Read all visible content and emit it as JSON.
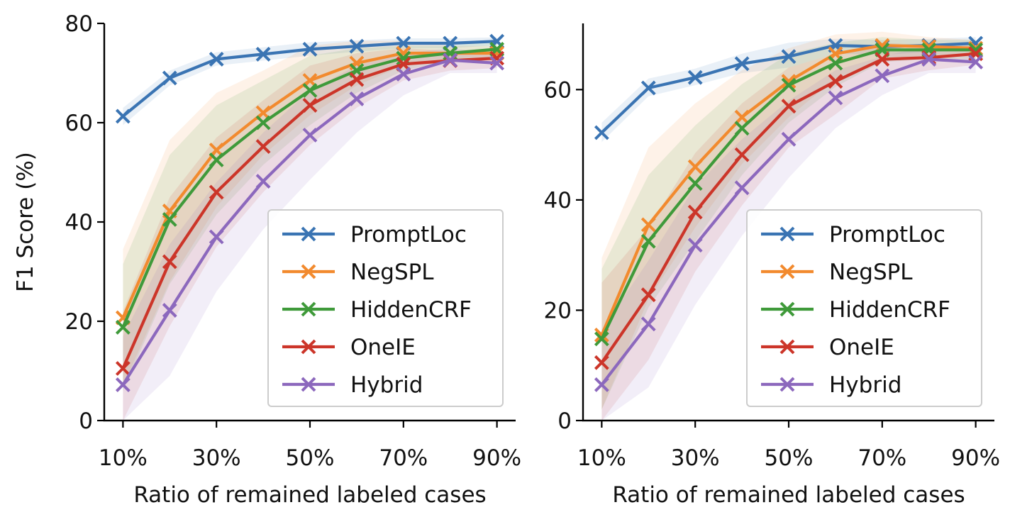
{
  "colors": {
    "PromptLoc": "#3a74b3",
    "NegSPL": "#f28a2e",
    "HiddenCRF": "#3f9a3a",
    "OneIE": "#cc3529",
    "Hybrid": "#8c68bd"
  },
  "chart_data": [
    {
      "type": "line",
      "marker": "x",
      "x": [
        10,
        20,
        30,
        40,
        50,
        60,
        70,
        80,
        90
      ],
      "xticks": [
        10,
        30,
        50,
        70,
        90
      ],
      "xtick_labels": [
        "10%",
        "30%",
        "50%",
        "70%",
        "90%"
      ],
      "xlim": [
        6,
        94
      ],
      "ylim": [
        0,
        80
      ],
      "yticks": [
        0,
        20,
        40,
        60,
        80
      ],
      "ytick_labels": [
        "0",
        "20",
        "40",
        "60",
        "80"
      ],
      "xlabel": "Ratio of remained labeled cases",
      "ylabel": "F1 Score (%)",
      "grid": false,
      "legend": "lower-right",
      "series": [
        {
          "name": "PromptLoc",
          "values": [
            61.3,
            69.0,
            72.8,
            73.8,
            74.8,
            75.4,
            76.0,
            76.0,
            76.4
          ],
          "lower": [
            59.5,
            67.5,
            71.5,
            72.5,
            73.5,
            74.3,
            75.0,
            75.0,
            75.6
          ],
          "upper": [
            63.0,
            70.5,
            74.2,
            75.2,
            76.2,
            76.6,
            77.0,
            77.0,
            77.2
          ]
        },
        {
          "name": "NegSPL",
          "values": [
            20.7,
            42.2,
            54.5,
            62.0,
            68.5,
            72.0,
            74.0,
            74.0,
            74.0
          ],
          "lower": [
            7.0,
            28.0,
            43.0,
            53.5,
            61.5,
            67.5,
            71.5,
            72.5,
            72.5
          ],
          "upper": [
            34.5,
            56.5,
            66.0,
            70.5,
            75.5,
            76.5,
            76.5,
            75.5,
            75.5
          ]
        },
        {
          "name": "HiddenCRF",
          "values": [
            18.8,
            40.5,
            52.5,
            60.0,
            66.5,
            70.5,
            73.0,
            74.0,
            74.8
          ],
          "lower": [
            6.0,
            27.5,
            41.5,
            51.5,
            59.5,
            66.0,
            70.5,
            72.5,
            73.0
          ],
          "upper": [
            31.5,
            53.5,
            63.5,
            68.5,
            73.5,
            75.0,
            75.5,
            75.5,
            76.5
          ]
        },
        {
          "name": "OneIE",
          "values": [
            10.5,
            32.0,
            46.0,
            55.2,
            63.5,
            68.7,
            71.8,
            72.5,
            73.0
          ],
          "lower": [
            0.0,
            19.0,
            35.0,
            46.0,
            55.5,
            63.0,
            68.5,
            70.5,
            71.0
          ],
          "upper": [
            22.0,
            45.0,
            57.0,
            64.5,
            71.5,
            74.0,
            75.0,
            74.5,
            75.0
          ]
        },
        {
          "name": "Hybrid",
          "values": [
            7.2,
            22.2,
            37.0,
            48.2,
            57.5,
            64.8,
            69.8,
            72.6,
            72.0
          ],
          "lower": [
            0.0,
            9.0,
            26.0,
            38.5,
            48.5,
            58.0,
            65.5,
            70.0,
            70.0
          ],
          "upper": [
            17.0,
            35.5,
            48.0,
            58.0,
            66.5,
            71.5,
            74.0,
            75.0,
            74.0
          ]
        }
      ]
    },
    {
      "type": "line",
      "marker": "x",
      "x": [
        10,
        20,
        30,
        40,
        50,
        60,
        70,
        80,
        90
      ],
      "xticks": [
        10,
        30,
        50,
        70,
        90
      ],
      "xtick_labels": [
        "10%",
        "30%",
        "50%",
        "70%",
        "90%"
      ],
      "xlim": [
        6,
        94
      ],
      "ylim": [
        0,
        72
      ],
      "yticks": [
        0,
        20,
        40,
        60
      ],
      "ytick_labels": [
        "0",
        "20",
        "40",
        "60"
      ],
      "xlabel": "Ratio of remained labeled cases",
      "ylabel": "",
      "grid": false,
      "legend": "lower-right",
      "series": [
        {
          "name": "PromptLoc",
          "values": [
            52.2,
            60.3,
            62.2,
            64.7,
            66.0,
            68.0,
            67.8,
            68.0,
            68.4
          ],
          "lower": [
            50.5,
            58.8,
            60.8,
            63.0,
            64.0,
            66.5,
            66.3,
            66.8,
            67.2
          ],
          "upper": [
            54.0,
            62.0,
            63.8,
            66.5,
            68.5,
            69.2,
            69.0,
            69.2,
            69.5
          ]
        },
        {
          "name": "NegSPL",
          "values": [
            15.5,
            35.5,
            46.0,
            55.0,
            61.5,
            66.5,
            68.0,
            67.8,
            67.5
          ],
          "lower": [
            2.0,
            22.0,
            35.0,
            46.5,
            55.0,
            62.0,
            65.5,
            66.0,
            66.0
          ],
          "upper": [
            29.5,
            49.5,
            57.5,
            63.5,
            67.5,
            70.0,
            70.5,
            69.5,
            69.0
          ]
        },
        {
          "name": "HiddenCRF",
          "values": [
            14.8,
            32.5,
            43.0,
            53.0,
            60.8,
            64.8,
            67.2,
            67.2,
            67.2
          ],
          "lower": [
            2.0,
            20.5,
            32.5,
            44.5,
            54.0,
            60.5,
            65.0,
            65.5,
            65.5
          ],
          "upper": [
            27.5,
            44.5,
            53.5,
            61.0,
            66.5,
            68.5,
            69.5,
            69.0,
            69.0
          ]
        },
        {
          "name": "OneIE",
          "values": [
            10.5,
            22.8,
            37.8,
            48.2,
            57.0,
            61.5,
            65.5,
            65.8,
            66.5
          ],
          "lower": [
            0.0,
            11.0,
            27.0,
            39.0,
            49.5,
            55.5,
            62.0,
            63.5,
            64.5
          ],
          "upper": [
            25.0,
            35.0,
            48.5,
            57.5,
            64.0,
            66.5,
            68.5,
            68.0,
            68.5
          ]
        },
        {
          "name": "Hybrid",
          "values": [
            6.5,
            17.5,
            31.8,
            42.2,
            51.0,
            58.5,
            62.5,
            65.5,
            65.0
          ],
          "lower": [
            0.0,
            6.0,
            21.0,
            33.5,
            44.0,
            53.0,
            59.0,
            63.0,
            63.0
          ],
          "upper": [
            16.5,
            29.0,
            42.5,
            51.0,
            58.0,
            63.5,
            66.0,
            68.0,
            67.0
          ]
        }
      ]
    }
  ]
}
